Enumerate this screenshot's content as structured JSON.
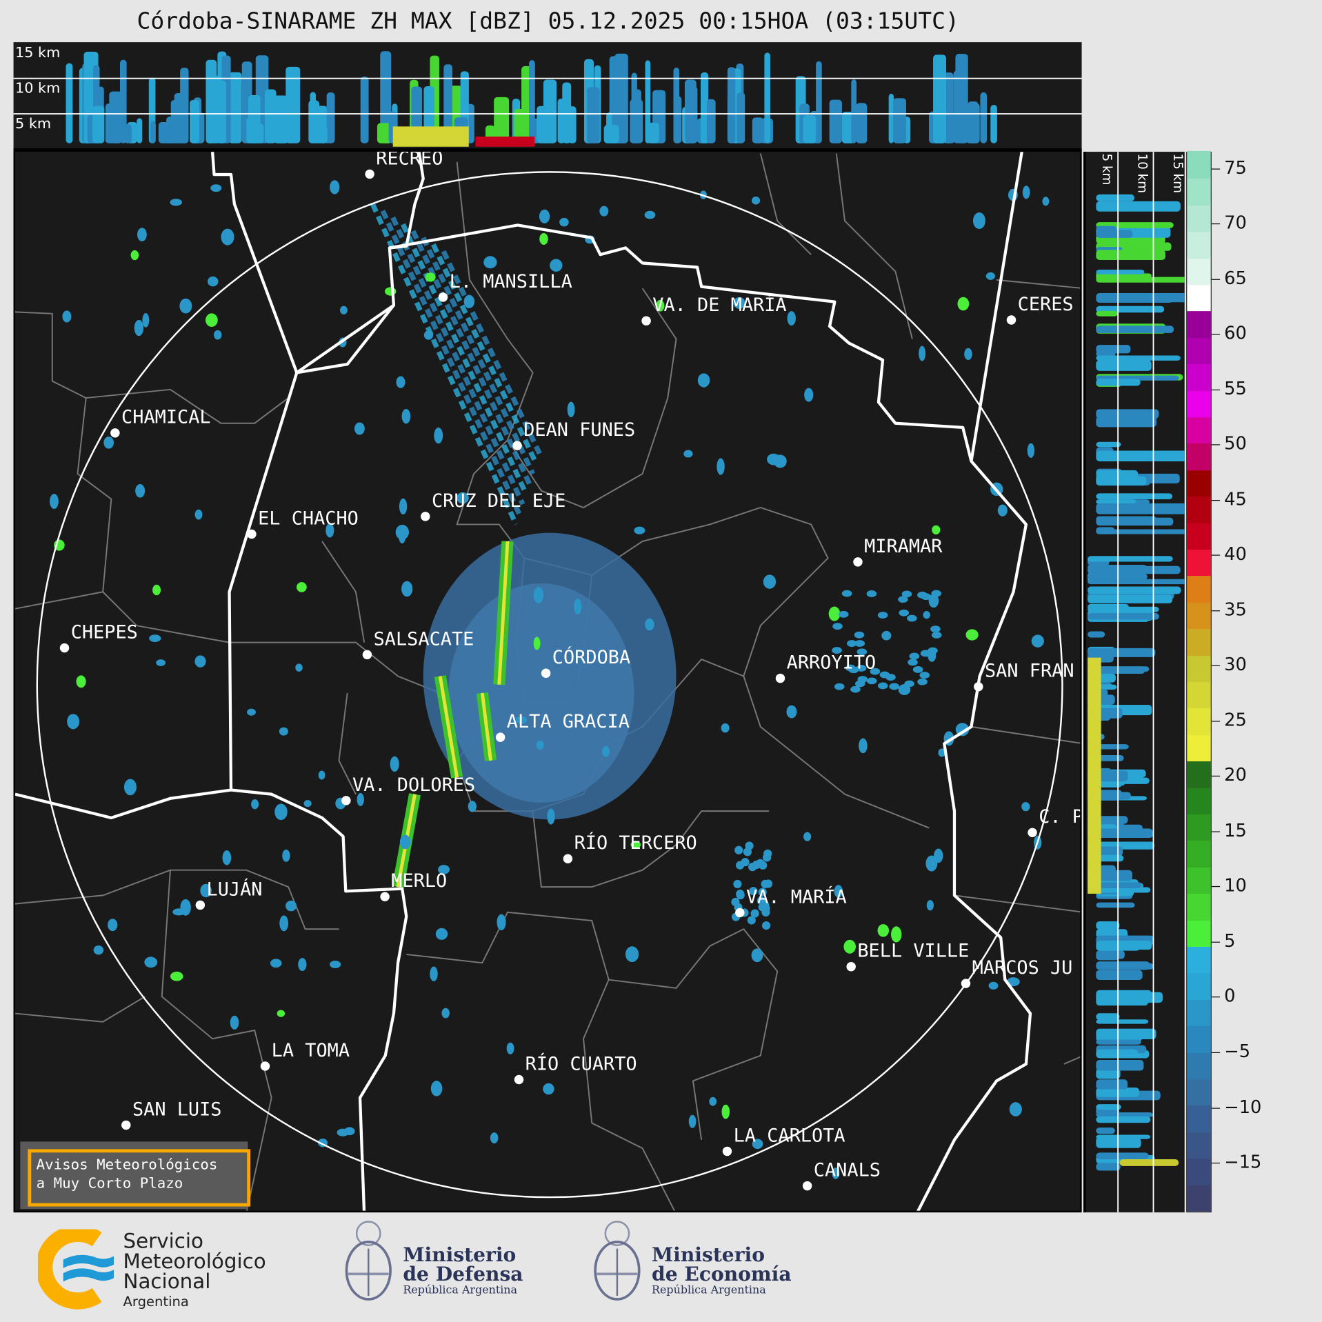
{
  "title": "Córdoba-SINARAME ZH MAX [dBZ] 05.12.2025 00:15HOA (03:15UTC)",
  "cross_section_top": {
    "height_labels": [
      "15 km",
      "10 km",
      "5 km"
    ]
  },
  "cross_section_right": {
    "height_labels": [
      "5 km",
      "10 km",
      "15 km"
    ]
  },
  "cities": [
    "RECREO",
    "L. MANSILLA",
    "VA. DE MARÍA",
    "CERES",
    "CHAMICAL",
    "DEAN FUNES",
    "CRUZ DEL EJE",
    "EL CHACHO",
    "MIRAMAR",
    "CHEPES",
    "SALSACATE",
    "CÓRDOBA",
    "ARROYITO",
    "SAN FRAN",
    "ALTA GRACIA",
    "VA. DOLORES",
    "C. P",
    "RÍO TERCERO",
    "LUJÁN",
    "MERLO",
    "VA. MARÍA",
    "BELL VILLE",
    "MARCOS JU",
    "LA TOMA",
    "RÍO CUARTO",
    "SAN LUIS",
    "LA CARLOTA",
    "CANALS"
  ],
  "colorbar": {
    "unit": "dBZ",
    "ticks": [
      "75",
      "70",
      "65",
      "60",
      "55",
      "50",
      "45",
      "40",
      "35",
      "30",
      "25",
      "20",
      "15",
      "10",
      "5",
      "0",
      "−5",
      "−10",
      "−15"
    ],
    "range": [
      -19.5,
      76.5
    ],
    "colors": [
      "#3c416e",
      "#3b4a7c",
      "#3a5688",
      "#376196",
      "#3470a2",
      "#2f7bb0",
      "#2b88bf",
      "#2b96c8",
      "#2aa6d5",
      "#2bb0dd",
      "#4bef3a",
      "#47d632",
      "#3ec22c",
      "#35ae25",
      "#2e9a22",
      "#26861e",
      "#236f1b",
      "#eeee3a",
      "#e2e438",
      "#d4d636",
      "#c8c830",
      "#ccab25",
      "#d6921b",
      "#de7e17",
      "#ee1236",
      "#c9001d",
      "#b30010",
      "#9a0000",
      "#c20066",
      "#d800a0",
      "#ea00ea",
      "#cc00cc",
      "#b000b0",
      "#980098",
      "#ffffff",
      "#e0f5ec",
      "#c8eedf",
      "#b4e8d4",
      "#9fe3c8",
      "#8adcbc"
    ]
  },
  "aviso": {
    "line1": "Avisos Meteorológicos",
    "line2": "a Muy Corto Plazo"
  },
  "logos": {
    "smn": {
      "l1": "Servicio",
      "l2": "Meteorológico",
      "l3": "Nacional",
      "l4": "Argentina"
    },
    "defensa": {
      "l1": "Ministerio",
      "l2": "de Defensa",
      "l3": "República Argentina"
    },
    "economia": {
      "l1": "Ministerio",
      "l2": "de Economía",
      "l3": "República Argentina"
    }
  }
}
